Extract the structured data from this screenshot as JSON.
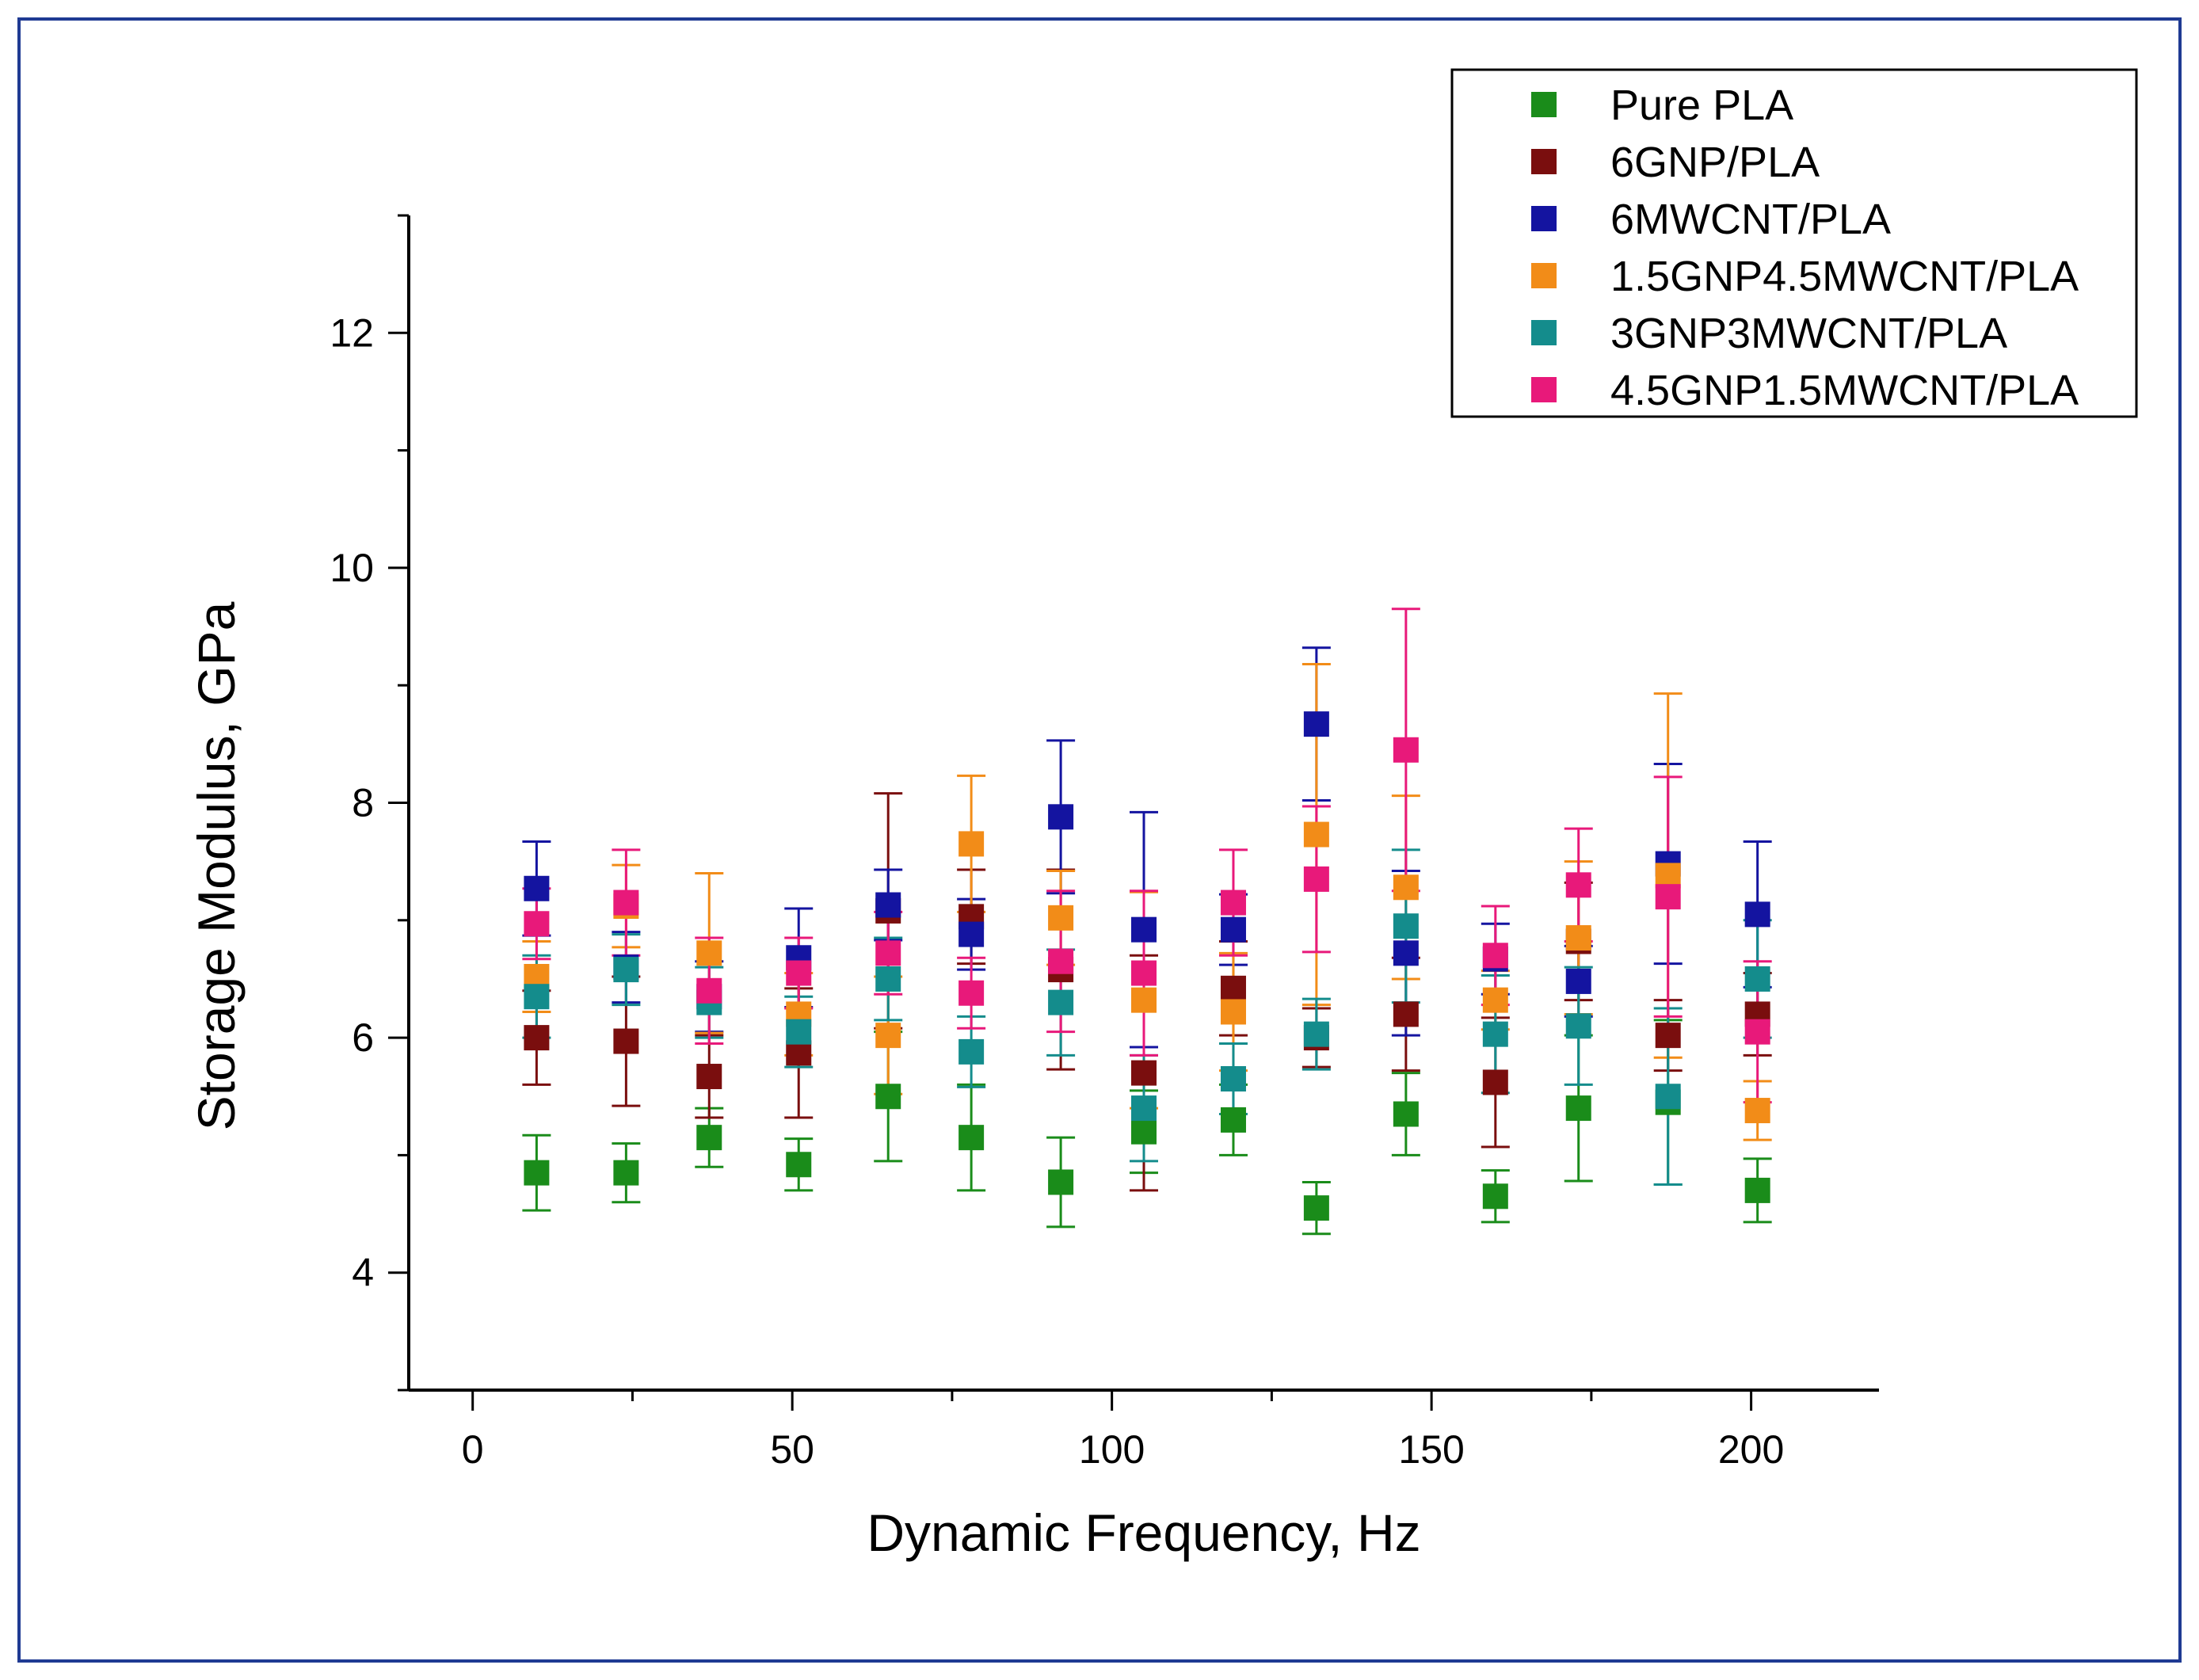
{
  "chart_data": {
    "type": "scatter",
    "title": "",
    "xlabel": "Dynamic Frequency, Hz",
    "ylabel": "Storage Modulus, GPa",
    "xlim": [
      -10,
      220
    ],
    "ylim": [
      3,
      13
    ],
    "x_ticks": [
      0,
      50,
      100,
      150,
      200
    ],
    "x_tick_labels": [
      "0",
      "50",
      "100",
      "150",
      "200"
    ],
    "y_ticks": [
      4,
      6,
      8,
      10,
      12
    ],
    "y_tick_labels": [
      "4",
      "6",
      "8",
      "10",
      "12"
    ],
    "x": [
      10,
      24,
      37,
      51,
      65,
      78,
      92,
      105,
      119,
      132,
      146,
      160,
      173,
      187,
      201
    ],
    "legend_position": "top-right",
    "series": [
      {
        "name": "Pure PLA",
        "color": "#1a8c1a",
        "values": [
          4.85,
          4.85,
          5.15,
          4.92,
          5.5,
          5.15,
          4.77,
          5.2,
          5.3,
          4.55,
          5.35,
          4.65,
          5.4,
          5.45,
          4.7
        ],
        "errors": [
          0.32,
          0.25,
          0.25,
          0.22,
          0.55,
          0.45,
          0.38,
          0.35,
          0.3,
          0.22,
          0.35,
          0.22,
          0.62,
          0.7,
          0.27
        ]
      },
      {
        "name": "6GNP/PLA",
        "color": "#7a0e0e",
        "values": [
          6.0,
          5.97,
          5.67,
          5.87,
          7.08,
          7.03,
          6.58,
          5.7,
          6.42,
          6.0,
          6.2,
          5.62,
          6.82,
          6.02,
          6.2
        ],
        "errors": [
          0.4,
          0.55,
          0.35,
          0.55,
          1.0,
          0.4,
          0.85,
          1.0,
          0.4,
          0.25,
          0.48,
          0.55,
          0.5,
          0.3,
          0.35
        ]
      },
      {
        "name": "6MWCNT/PLA",
        "color": "#1414a0",
        "values": [
          7.27,
          6.6,
          6.35,
          6.68,
          7.13,
          6.88,
          7.88,
          6.92,
          6.92,
          8.67,
          6.72,
          6.67,
          6.48,
          7.48,
          7.05
        ],
        "errors": [
          0.4,
          0.3,
          0.3,
          0.42,
          0.3,
          0.3,
          0.65,
          1.0,
          0.3,
          0.65,
          0.7,
          0.3,
          0.3,
          0.85,
          0.62
        ]
      },
      {
        "name": "1.5GNP4.5MWCNT/PLA",
        "color": "#f28c18",
        "values": [
          6.52,
          7.12,
          6.72,
          6.2,
          6.02,
          7.65,
          7.02,
          6.32,
          6.22,
          7.73,
          7.28,
          6.32,
          6.85,
          7.38,
          5.38
        ],
        "errors": [
          0.3,
          0.35,
          0.68,
          0.35,
          0.5,
          0.58,
          0.4,
          0.92,
          0.5,
          1.45,
          0.78,
          0.25,
          0.65,
          1.55,
          0.25
        ]
      },
      {
        "name": "3GNP3MWCNT/PLA",
        "color": "#148c8c",
        "values": [
          6.35,
          6.58,
          6.3,
          6.05,
          6.5,
          5.88,
          6.3,
          5.4,
          5.65,
          6.03,
          6.95,
          6.03,
          6.1,
          5.5,
          6.5
        ],
        "errors": [
          0.35,
          0.3,
          0.3,
          0.3,
          0.35,
          0.3,
          0.45,
          0.45,
          0.3,
          0.3,
          0.65,
          0.5,
          0.5,
          0.75,
          0.5
        ]
      },
      {
        "name": "4.5GNP1.5MWCNT/PLA",
        "color": "#e8197a",
        "values": [
          6.97,
          7.15,
          6.4,
          6.55,
          6.72,
          6.38,
          6.65,
          6.55,
          7.15,
          7.35,
          8.45,
          6.7,
          7.3,
          7.2,
          6.05
        ],
        "errors": [
          0.3,
          0.45,
          0.45,
          0.3,
          0.35,
          0.3,
          0.6,
          0.7,
          0.45,
          0.62,
          1.2,
          0.42,
          0.48,
          1.02,
          0.6
        ]
      }
    ]
  }
}
